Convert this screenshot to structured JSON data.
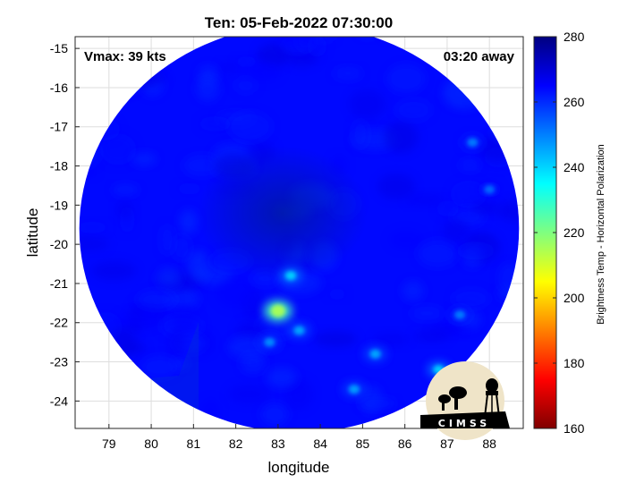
{
  "chart_data": {
    "type": "heatmap",
    "title": "Ten: 05-Feb-2022 07:30:00",
    "xlabel": "longitude",
    "ylabel": "latitude",
    "xlim": [
      78.2,
      88.8
    ],
    "ylim": [
      -24.7,
      -14.7
    ],
    "xticks": [
      79,
      80,
      81,
      82,
      83,
      84,
      85,
      86,
      87,
      88
    ],
    "yticks": [
      -15,
      -16,
      -17,
      -18,
      -19,
      -20,
      -21,
      -22,
      -23,
      -24
    ],
    "grid": true,
    "annotations": {
      "vmax": "Vmax: 39 kts",
      "time_offset": "03:20 away"
    },
    "colorbar": {
      "label": "Brightness Temp - Horizontal Polarization",
      "min": 160,
      "max": 280,
      "ticks": [
        160,
        180,
        200,
        220,
        240,
        260,
        280
      ],
      "colormap": "jet"
    },
    "swath": {
      "center": [
        83.5,
        -19.6
      ],
      "radius_lon": 5.2,
      "radius_lat": 5.2
    },
    "background_value": 264,
    "features": [
      {
        "kind": "cold_center",
        "lon": 83.1,
        "lat": -19.2,
        "value": 270
      },
      {
        "kind": "warm_spot",
        "lon": 83.0,
        "lat": -21.7,
        "value": 215
      },
      {
        "kind": "warm_spot",
        "lon": 83.3,
        "lat": -20.8,
        "value": 240
      },
      {
        "kind": "warm_spot",
        "lon": 83.5,
        "lat": -22.2,
        "value": 245
      },
      {
        "kind": "warm_spot",
        "lon": 82.8,
        "lat": -22.5,
        "value": 248
      },
      {
        "kind": "warm_spot",
        "lon": 85.3,
        "lat": -22.8,
        "value": 245
      },
      {
        "kind": "warm_spot",
        "lon": 84.8,
        "lat": -23.7,
        "value": 246
      },
      {
        "kind": "warm_spot",
        "lon": 86.8,
        "lat": -23.2,
        "value": 240
      },
      {
        "kind": "warm_spot",
        "lon": 87.6,
        "lat": -17.4,
        "value": 250
      },
      {
        "kind": "warm_spot",
        "lon": 88.0,
        "lat": -18.6,
        "value": 252
      },
      {
        "kind": "warm_spot",
        "lon": 87.3,
        "lat": -21.8,
        "value": 250
      }
    ]
  },
  "logo": {
    "text": "CIMSS",
    "colors": {
      "sun": "#efe4c8",
      "ink": "#000000"
    }
  }
}
